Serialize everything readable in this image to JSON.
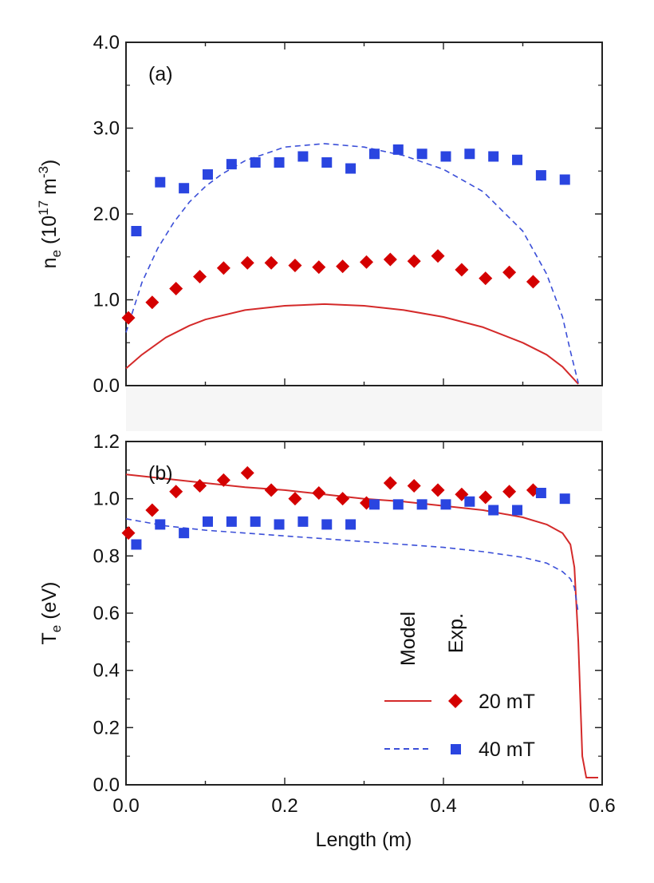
{
  "chart_data": [
    {
      "type": "line+scatter",
      "panel_label": "(a)",
      "ylabel": "n_e (10^17 m^-3)",
      "ylabel_parts": {
        "sym": "n",
        "sub": "e",
        "open": " (10",
        "sup1": "17",
        "mid": " m",
        "sup2": "-3",
        "close": ")"
      },
      "xlim": [
        0,
        0.6
      ],
      "ylim": [
        0,
        4.0
      ],
      "yticks": [
        "0.0",
        "1.0",
        "2.0",
        "3.0",
        "4.0"
      ],
      "series": [
        {
          "name": "Model 20 mT",
          "kind": "line",
          "style": "solid",
          "color": "#d42a2a",
          "x": [
            0.0,
            0.02,
            0.05,
            0.08,
            0.1,
            0.15,
            0.2,
            0.25,
            0.3,
            0.35,
            0.4,
            0.45,
            0.5,
            0.53,
            0.55,
            0.57
          ],
          "y": [
            0.2,
            0.36,
            0.56,
            0.7,
            0.77,
            0.88,
            0.93,
            0.95,
            0.93,
            0.88,
            0.8,
            0.68,
            0.5,
            0.36,
            0.22,
            0.02
          ]
        },
        {
          "name": "Model 40 mT",
          "kind": "line",
          "style": "dashed",
          "color": "#3b4fd8",
          "x": [
            0.0,
            0.02,
            0.04,
            0.06,
            0.08,
            0.1,
            0.12,
            0.15,
            0.2,
            0.25,
            0.3,
            0.35,
            0.4,
            0.45,
            0.5,
            0.53,
            0.55,
            0.56,
            0.57
          ],
          "y": [
            0.62,
            1.2,
            1.6,
            1.9,
            2.14,
            2.32,
            2.46,
            2.62,
            2.78,
            2.82,
            2.78,
            2.68,
            2.52,
            2.26,
            1.8,
            1.3,
            0.8,
            0.4,
            0.03
          ]
        },
        {
          "name": "Exp. 20 mT",
          "kind": "diamond",
          "color": "#d40000",
          "x": [
            0.003,
            0.033,
            0.063,
            0.093,
            0.123,
            0.153,
            0.183,
            0.213,
            0.243,
            0.273,
            0.303,
            0.333,
            0.363,
            0.393,
            0.423,
            0.453,
            0.483,
            0.513
          ],
          "y": [
            0.79,
            0.97,
            1.13,
            1.27,
            1.37,
            1.43,
            1.43,
            1.4,
            1.38,
            1.39,
            1.44,
            1.47,
            1.45,
            1.51,
            1.35,
            1.25,
            1.32,
            1.21
          ]
        },
        {
          "name": "Exp. 40 mT",
          "kind": "square",
          "color": "#2a45e0",
          "x": [
            0.013,
            0.043,
            0.073,
            0.103,
            0.133,
            0.163,
            0.193,
            0.223,
            0.253,
            0.283,
            0.313,
            0.343,
            0.373,
            0.403,
            0.433,
            0.463,
            0.493,
            0.523,
            0.553
          ],
          "y": [
            1.8,
            2.37,
            2.3,
            2.46,
            2.58,
            2.6,
            2.6,
            2.67,
            2.6,
            2.53,
            2.7,
            2.75,
            2.7,
            2.67,
            2.7,
            2.67,
            2.63,
            2.45,
            2.4
          ]
        }
      ]
    },
    {
      "type": "line+scatter",
      "panel_label": "(b)",
      "ylabel": "T_e (eV)",
      "ylabel_parts": {
        "sym": "T",
        "sub": "e",
        "rest": " (eV)"
      },
      "xlabel": "Length (m)",
      "xlim": [
        0,
        0.6
      ],
      "ylim": [
        0,
        1.2
      ],
      "xticks": [
        "0.0",
        "0.2",
        "0.4",
        "0.6"
      ],
      "yticks": [
        "0.0",
        "0.2",
        "0.4",
        "0.6",
        "0.8",
        "1.0",
        "1.2"
      ],
      "series": [
        {
          "name": "Model 20 mT",
          "kind": "line",
          "style": "solid",
          "color": "#d42a2a",
          "x": [
            0.0,
            0.05,
            0.1,
            0.15,
            0.2,
            0.25,
            0.3,
            0.35,
            0.4,
            0.45,
            0.5,
            0.53,
            0.55,
            0.56,
            0.565,
            0.57,
            0.575,
            0.58,
            0.595
          ],
          "y": [
            1.085,
            1.07,
            1.055,
            1.04,
            1.03,
            1.015,
            1.0,
            0.99,
            0.975,
            0.96,
            0.935,
            0.91,
            0.88,
            0.84,
            0.76,
            0.5,
            0.1,
            0.025,
            0.025
          ]
        },
        {
          "name": "Model 40 mT",
          "kind": "line",
          "style": "dashed",
          "color": "#3b4fd8",
          "x": [
            0.0,
            0.05,
            0.1,
            0.15,
            0.2,
            0.25,
            0.3,
            0.35,
            0.4,
            0.45,
            0.5,
            0.53,
            0.55,
            0.56,
            0.565,
            0.57
          ],
          "y": [
            0.93,
            0.905,
            0.89,
            0.88,
            0.87,
            0.86,
            0.85,
            0.84,
            0.83,
            0.815,
            0.795,
            0.775,
            0.745,
            0.72,
            0.69,
            0.6
          ]
        },
        {
          "name": "Exp. 20 mT",
          "kind": "diamond",
          "color": "#d40000",
          "x": [
            0.003,
            0.033,
            0.063,
            0.093,
            0.123,
            0.153,
            0.183,
            0.213,
            0.243,
            0.273,
            0.303,
            0.333,
            0.363,
            0.393,
            0.423,
            0.453,
            0.483,
            0.513
          ],
          "y": [
            0.88,
            0.96,
            1.025,
            1.045,
            1.065,
            1.09,
            1.03,
            1.0,
            1.02,
            1.0,
            0.985,
            1.055,
            1.045,
            1.03,
            1.015,
            1.005,
            1.025,
            1.03
          ]
        },
        {
          "name": "Exp. 40 mT",
          "kind": "square",
          "color": "#2a45e0",
          "x": [
            0.013,
            0.043,
            0.073,
            0.103,
            0.133,
            0.163,
            0.193,
            0.223,
            0.253,
            0.283,
            0.313,
            0.343,
            0.373,
            0.403,
            0.433,
            0.463,
            0.493,
            0.523,
            0.553
          ],
          "y": [
            0.84,
            0.91,
            0.88,
            0.92,
            0.92,
            0.92,
            0.91,
            0.92,
            0.91,
            0.91,
            0.98,
            0.98,
            0.98,
            0.98,
            0.99,
            0.96,
            0.96,
            1.02,
            1.0
          ]
        }
      ]
    }
  ],
  "legend": {
    "placement": "lower-right of panel (b)",
    "column_headers": [
      "Model",
      "Exp."
    ],
    "entries": [
      "20 mT",
      "40 mT"
    ]
  }
}
